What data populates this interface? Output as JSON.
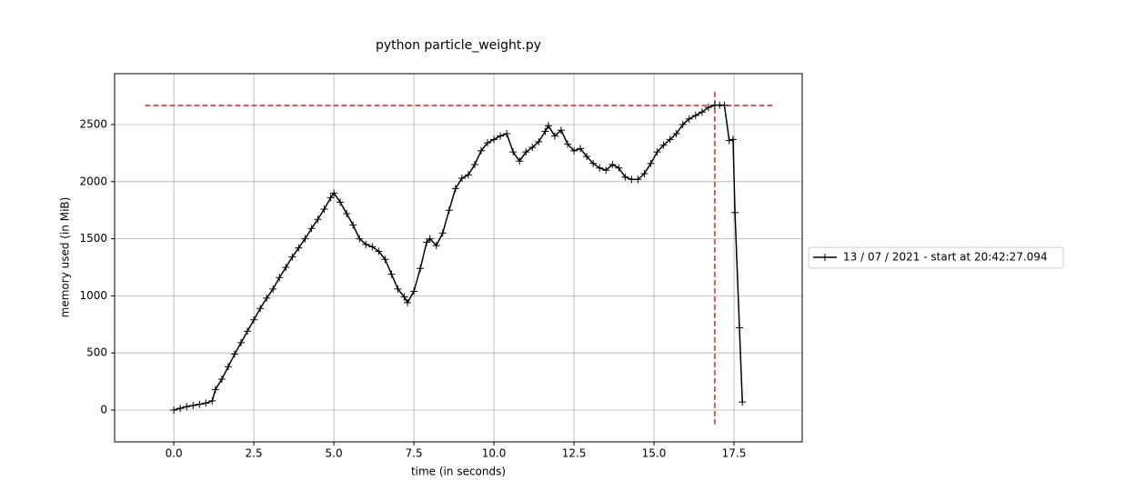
{
  "chart_data": {
    "type": "line",
    "title": "python particle_weight.py",
    "xlabel": "time (in seconds)",
    "ylabel": "memory used (in MiB)",
    "xlim": [
      -1.85,
      19.63
    ],
    "ylim": [
      -279,
      2946
    ],
    "xticks": [
      {
        "value": 0,
        "label": "0.0"
      },
      {
        "value": 2.5,
        "label": "2.5"
      },
      {
        "value": 5,
        "label": "5.0"
      },
      {
        "value": 7.5,
        "label": "7.5"
      },
      {
        "value": 10,
        "label": "10.0"
      },
      {
        "value": 12.5,
        "label": "12.5"
      },
      {
        "value": 15,
        "label": "15.0"
      },
      {
        "value": 17.5,
        "label": "17.5"
      }
    ],
    "yticks": [
      0,
      500,
      1000,
      1500,
      2000,
      2500
    ],
    "grid": true,
    "legend": "right",
    "series": [
      {
        "name": "13 / 07 / 2021 - start at 20:42:27.094",
        "color": "#000000",
        "x": [
          0.0,
          0.2,
          0.4,
          0.6,
          0.8,
          1.0,
          1.2,
          1.3,
          1.5,
          1.7,
          1.9,
          2.1,
          2.3,
          2.5,
          2.7,
          2.9,
          3.1,
          3.3,
          3.5,
          3.7,
          3.9,
          4.1,
          4.3,
          4.5,
          4.7,
          4.9,
          5.0,
          5.2,
          5.4,
          5.6,
          5.8,
          6.0,
          6.2,
          6.4,
          6.6,
          6.8,
          7.0,
          7.2,
          7.3,
          7.5,
          7.7,
          7.9,
          8.0,
          8.2,
          8.4,
          8.6,
          8.8,
          9.0,
          9.2,
          9.4,
          9.6,
          9.8,
          10.0,
          10.2,
          10.4,
          10.6,
          10.8,
          11.0,
          11.2,
          11.4,
          11.6,
          11.7,
          11.9,
          12.1,
          12.3,
          12.5,
          12.7,
          12.9,
          13.1,
          13.3,
          13.5,
          13.7,
          13.9,
          14.1,
          14.3,
          14.5,
          14.7,
          14.9,
          15.1,
          15.3,
          15.5,
          15.7,
          15.9,
          16.1,
          16.3,
          16.5,
          16.7,
          16.9,
          17.05,
          17.2,
          17.35,
          17.47,
          17.53,
          17.67,
          17.76
        ],
        "values": [
          0,
          15,
          30,
          40,
          50,
          60,
          80,
          180,
          270,
          380,
          490,
          590,
          690,
          790,
          890,
          980,
          1060,
          1160,
          1250,
          1340,
          1420,
          1500,
          1590,
          1670,
          1760,
          1860,
          1900,
          1820,
          1720,
          1620,
          1500,
          1450,
          1430,
          1390,
          1320,
          1190,
          1060,
          990,
          940,
          1040,
          1240,
          1470,
          1500,
          1440,
          1550,
          1750,
          1940,
          2030,
          2060,
          2150,
          2270,
          2340,
          2370,
          2400,
          2420,
          2260,
          2180,
          2260,
          2300,
          2350,
          2440,
          2490,
          2400,
          2450,
          2330,
          2270,
          2290,
          2220,
          2160,
          2120,
          2100,
          2150,
          2120,
          2040,
          2020,
          2020,
          2070,
          2160,
          2260,
          2320,
          2370,
          2420,
          2500,
          2550,
          2580,
          2610,
          2650,
          2670,
          2670,
          2670,
          2360,
          2370,
          1730,
          720,
          70
        ]
      }
    ],
    "hlines": [
      {
        "y": 2667,
        "xmin": -0.9,
        "xmax": 18.7,
        "color": "#d62728"
      }
    ],
    "vlines": [
      {
        "x": 16.9,
        "ymin": -127,
        "ymax": 2803,
        "color": "#d62728"
      }
    ]
  }
}
